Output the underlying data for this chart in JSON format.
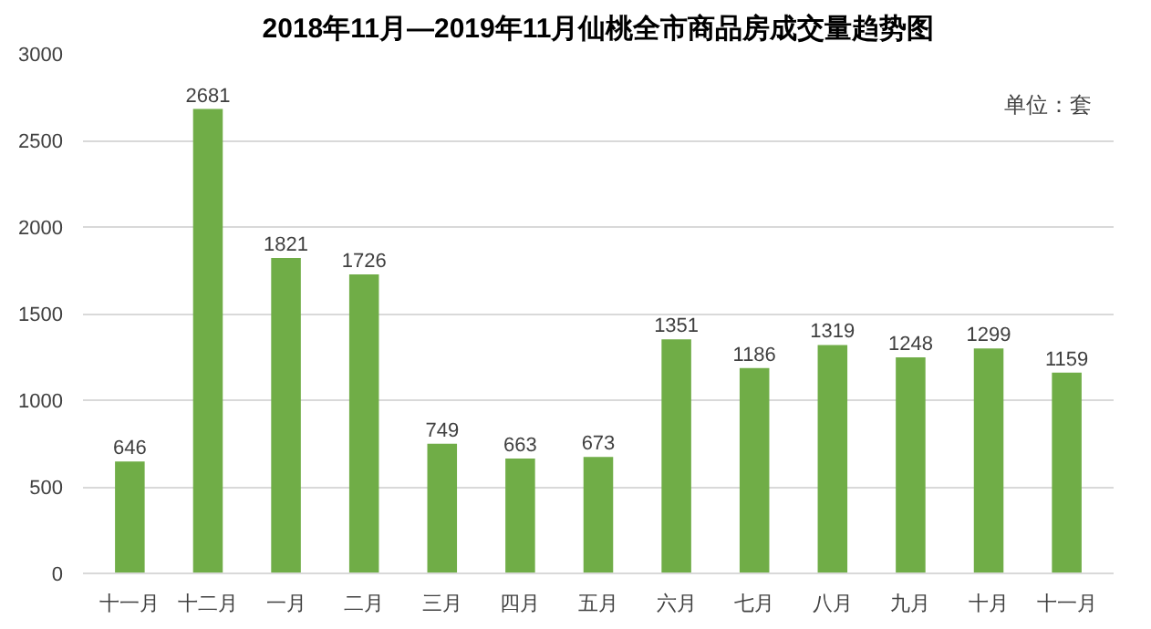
{
  "chart_data": {
    "type": "bar",
    "title": "2018年11月—2019年11月仙桃全市商品房成交量趋势图",
    "categories": [
      "十一月",
      "十二月",
      "一月",
      "二月",
      "三月",
      "四月",
      "五月",
      "六月",
      "七月",
      "八月",
      "九月",
      "十月",
      "十一月"
    ],
    "values": [
      646,
      2681,
      1821,
      1726,
      749,
      663,
      673,
      1351,
      1186,
      1319,
      1248,
      1299,
      1159
    ],
    "color": "#70ad47",
    "ylim": [
      0,
      3000
    ],
    "yticks": [
      0,
      500,
      1000,
      1500,
      2000,
      2500,
      3000
    ],
    "grid": "y",
    "data_labels": true,
    "annotations": [
      "单位：套"
    ]
  }
}
